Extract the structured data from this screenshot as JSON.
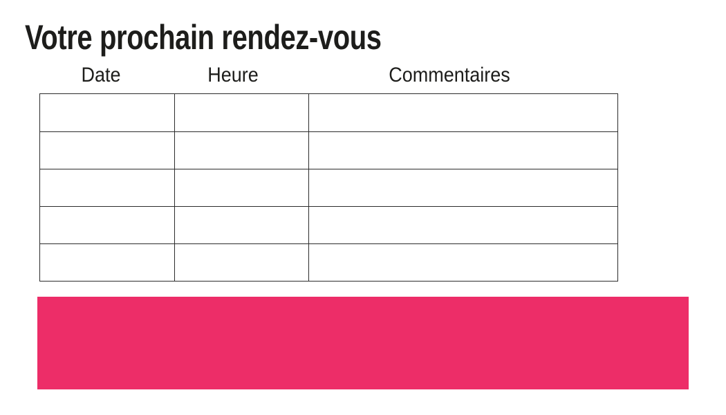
{
  "slide": {
    "title": "Votre prochain rendez-vous"
  },
  "table": {
    "headers": [
      "Date",
      "Heure",
      "Commentaires"
    ],
    "rows": [
      [
        "",
        "",
        ""
      ],
      [
        "",
        "",
        ""
      ],
      [
        "",
        "",
        ""
      ],
      [
        "",
        "",
        ""
      ],
      [
        "",
        "",
        ""
      ]
    ]
  },
  "colors": {
    "accent": "#ED2D68",
    "text": "#1D1D1B",
    "table_border": "#2B2B2B",
    "background": "#FFFFFF"
  }
}
